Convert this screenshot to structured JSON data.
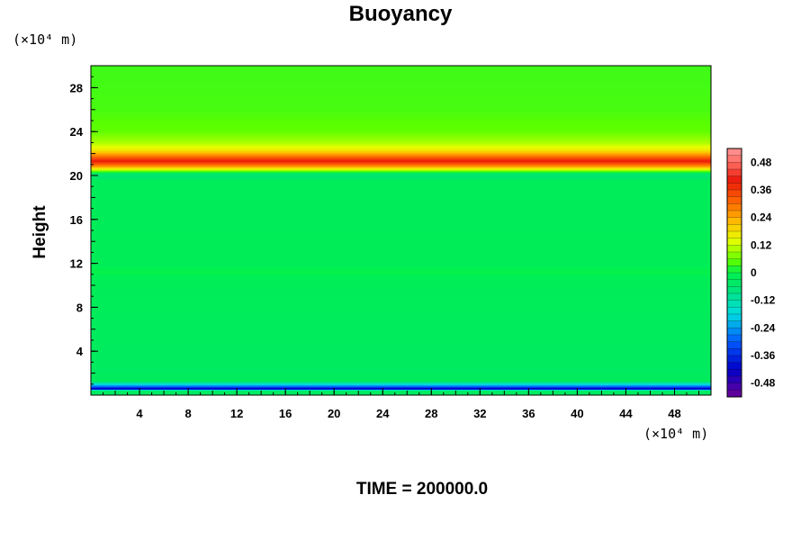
{
  "chart_data": {
    "type": "heatmap",
    "title": "Buoyancy",
    "ylabel": "Height",
    "y_unit": "(×10⁴ m)",
    "x_unit": "(×10⁴ m)",
    "time_label": "TIME = 200000.0",
    "xlim": [
      0,
      51
    ],
    "ylim": [
      0,
      30
    ],
    "x_ticks": [
      "4",
      "8",
      "12",
      "16",
      "20",
      "24",
      "28",
      "32",
      "36",
      "40",
      "44",
      "48"
    ],
    "y_ticks": [
      "4",
      "8",
      "12",
      "16",
      "20",
      "24",
      "28"
    ],
    "x_tick_values": [
      4,
      8,
      12,
      16,
      20,
      24,
      28,
      32,
      36,
      40,
      44,
      48
    ],
    "y_tick_values": [
      4,
      8,
      12,
      16,
      20,
      24,
      28
    ],
    "colorbar": {
      "min": -0.54,
      "max": 0.54,
      "labels": [
        "0.48",
        "0.36",
        "0.24",
        "0.12",
        "0",
        "-0.12",
        "-0.24",
        "-0.36",
        "-0.48"
      ],
      "label_values": [
        0.48,
        0.36,
        0.24,
        0.12,
        0,
        -0.12,
        -0.24,
        -0.36,
        -0.48
      ]
    },
    "vertical_profile": [
      {
        "height": 0.0,
        "value": -0.03
      },
      {
        "height": 0.4,
        "value": -0.03
      },
      {
        "height": 0.55,
        "value": -0.46
      },
      {
        "height": 0.75,
        "value": -0.3
      },
      {
        "height": 1.0,
        "value": -0.16
      },
      {
        "height": 1.3,
        "value": -0.02
      },
      {
        "height": 2.0,
        "value": -0.03
      },
      {
        "height": 6.0,
        "value": -0.025
      },
      {
        "height": 10.5,
        "value": -0.015
      },
      {
        "height": 11.2,
        "value": 0.005
      },
      {
        "height": 12.0,
        "value": -0.015
      },
      {
        "height": 19.5,
        "value": -0.02
      },
      {
        "height": 20.0,
        "value": -0.07
      },
      {
        "height": 20.3,
        "value": 0.02
      },
      {
        "height": 20.8,
        "value": 0.25
      },
      {
        "height": 21.3,
        "value": 0.4
      },
      {
        "height": 21.8,
        "value": 0.28
      },
      {
        "height": 22.3,
        "value": 0.17
      },
      {
        "height": 23.0,
        "value": 0.1
      },
      {
        "height": 24.0,
        "value": 0.055
      },
      {
        "height": 26.0,
        "value": 0.04
      },
      {
        "height": 30.0,
        "value": 0.035
      }
    ]
  }
}
